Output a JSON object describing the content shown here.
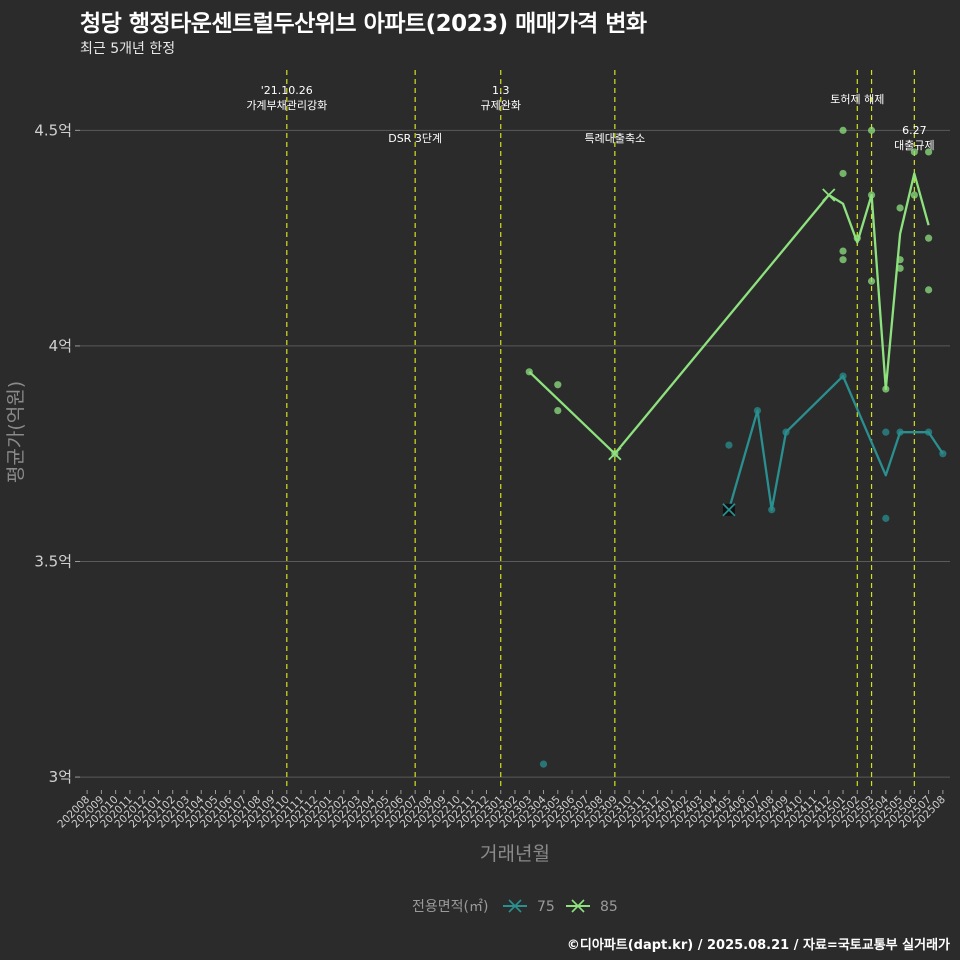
{
  "title": "청당 행정타운센트럴두산위브 아파트(2023) 매매가격 변화",
  "subtitle": "최근 5개년 한정",
  "caption": "©디아파트(dapt.kr) / 2025.08.21 / 자료=국토교통부 실거래가",
  "colors": {
    "s75": "#2a8f8f",
    "s85": "#8ee27e",
    "vline": "#d4e01e",
    "grid": "#5a5a5a"
  },
  "chart_data": {
    "type": "line",
    "title": "청당 행정타운센트럴두산위브 아파트(2023) 매매가격 변화",
    "xlabel": "거래년월",
    "ylabel": "평균가(억원)",
    "ylim": [
      2.97,
      4.64
    ],
    "yticks": [
      3,
      3.5,
      4,
      4.5
    ],
    "ytick_labels": [
      "3억",
      "3.5억",
      "4억",
      "4.5억"
    ],
    "categories": [
      "202008",
      "202009",
      "202010",
      "202011",
      "202012",
      "202101",
      "202102",
      "202103",
      "202104",
      "202105",
      "202106",
      "202107",
      "202108",
      "202109",
      "202110",
      "202111",
      "202112",
      "202201",
      "202202",
      "202203",
      "202204",
      "202205",
      "202206",
      "202207",
      "202208",
      "202209",
      "202210",
      "202211",
      "202212",
      "202301",
      "202302",
      "202303",
      "202304",
      "202305",
      "202306",
      "202307",
      "202308",
      "202309",
      "202310",
      "202311",
      "202312",
      "202401",
      "202402",
      "202403",
      "202404",
      "202405",
      "202406",
      "202407",
      "202408",
      "202409",
      "202410",
      "202411",
      "202412",
      "202501",
      "202502",
      "202503",
      "202504",
      "202505",
      "202506",
      "202507",
      "202508"
    ],
    "events": [
      {
        "x": "202110",
        "label": "'21.10.26\n가계부채관리강화",
        "pos": "top"
      },
      {
        "x": "202207",
        "label": "DSR 3단계",
        "pos": "mid"
      },
      {
        "x": "202301",
        "label": "1.3\n규제완화",
        "pos": "top"
      },
      {
        "x": "202309",
        "label": "특례대출축소",
        "pos": "mid"
      },
      {
        "x": "202502",
        "label": "토허제 해제",
        "pos": "high"
      },
      {
        "x": "202503",
        "label": "",
        "pos": "none"
      },
      {
        "x": "202506",
        "label": "6.27\n대출규제",
        "pos": "low"
      }
    ],
    "series": [
      {
        "name": "75",
        "line": [
          [
            "202405",
            3.62
          ],
          [
            "202407",
            3.85
          ],
          [
            "202408",
            3.62
          ],
          [
            "202409",
            3.8
          ],
          [
            "202501",
            3.93
          ],
          [
            "202504",
            3.7
          ],
          [
            "202505",
            3.8
          ],
          [
            "202506",
            3.8
          ],
          [
            "202507",
            3.8
          ],
          [
            "202508",
            3.75
          ]
        ],
        "points": [
          [
            "202304",
            3.03
          ],
          [
            "202405",
            3.77
          ],
          [
            "202407",
            3.85
          ],
          [
            "202408",
            3.62
          ],
          [
            "202409",
            3.8
          ],
          [
            "202501",
            3.93
          ],
          [
            "202504",
            3.8
          ],
          [
            "202504",
            3.6
          ],
          [
            "202505",
            3.8
          ],
          [
            "202507",
            3.8
          ],
          [
            "202508",
            3.75
          ]
        ],
        "markers": [
          [
            "202405",
            3.62
          ]
        ]
      },
      {
        "name": "85",
        "line": [
          [
            "202303",
            3.94
          ],
          [
            "202309",
            3.75
          ],
          [
            "202412",
            4.35
          ],
          [
            "202501",
            4.33
          ],
          [
            "202502",
            4.24
          ],
          [
            "202503",
            4.35
          ],
          [
            "202504",
            3.9
          ],
          [
            "202505",
            4.26
          ],
          [
            "202506",
            4.4
          ],
          [
            "202507",
            4.28
          ]
        ],
        "points": [
          [
            "202303",
            3.94
          ],
          [
            "202305",
            3.91
          ],
          [
            "202305",
            3.85
          ],
          [
            "202309",
            3.75
          ],
          [
            "202501",
            4.5
          ],
          [
            "202501",
            4.4
          ],
          [
            "202501",
            4.22
          ],
          [
            "202501",
            4.2
          ],
          [
            "202502",
            4.25
          ],
          [
            "202503",
            4.5
          ],
          [
            "202503",
            4.35
          ],
          [
            "202503",
            4.15
          ],
          [
            "202504",
            3.9
          ],
          [
            "202505",
            4.32
          ],
          [
            "202505",
            4.2
          ],
          [
            "202505",
            4.18
          ],
          [
            "202506",
            4.45
          ],
          [
            "202506",
            4.35
          ],
          [
            "202507",
            4.45
          ],
          [
            "202507",
            4.25
          ],
          [
            "202507",
            4.13
          ]
        ],
        "markers": [
          [
            "202309",
            3.75
          ],
          [
            "202412",
            4.35
          ]
        ]
      }
    ],
    "legend": {
      "title": "전용면적(㎡)",
      "position": "bottom",
      "entries": [
        "75",
        "85"
      ]
    }
  }
}
